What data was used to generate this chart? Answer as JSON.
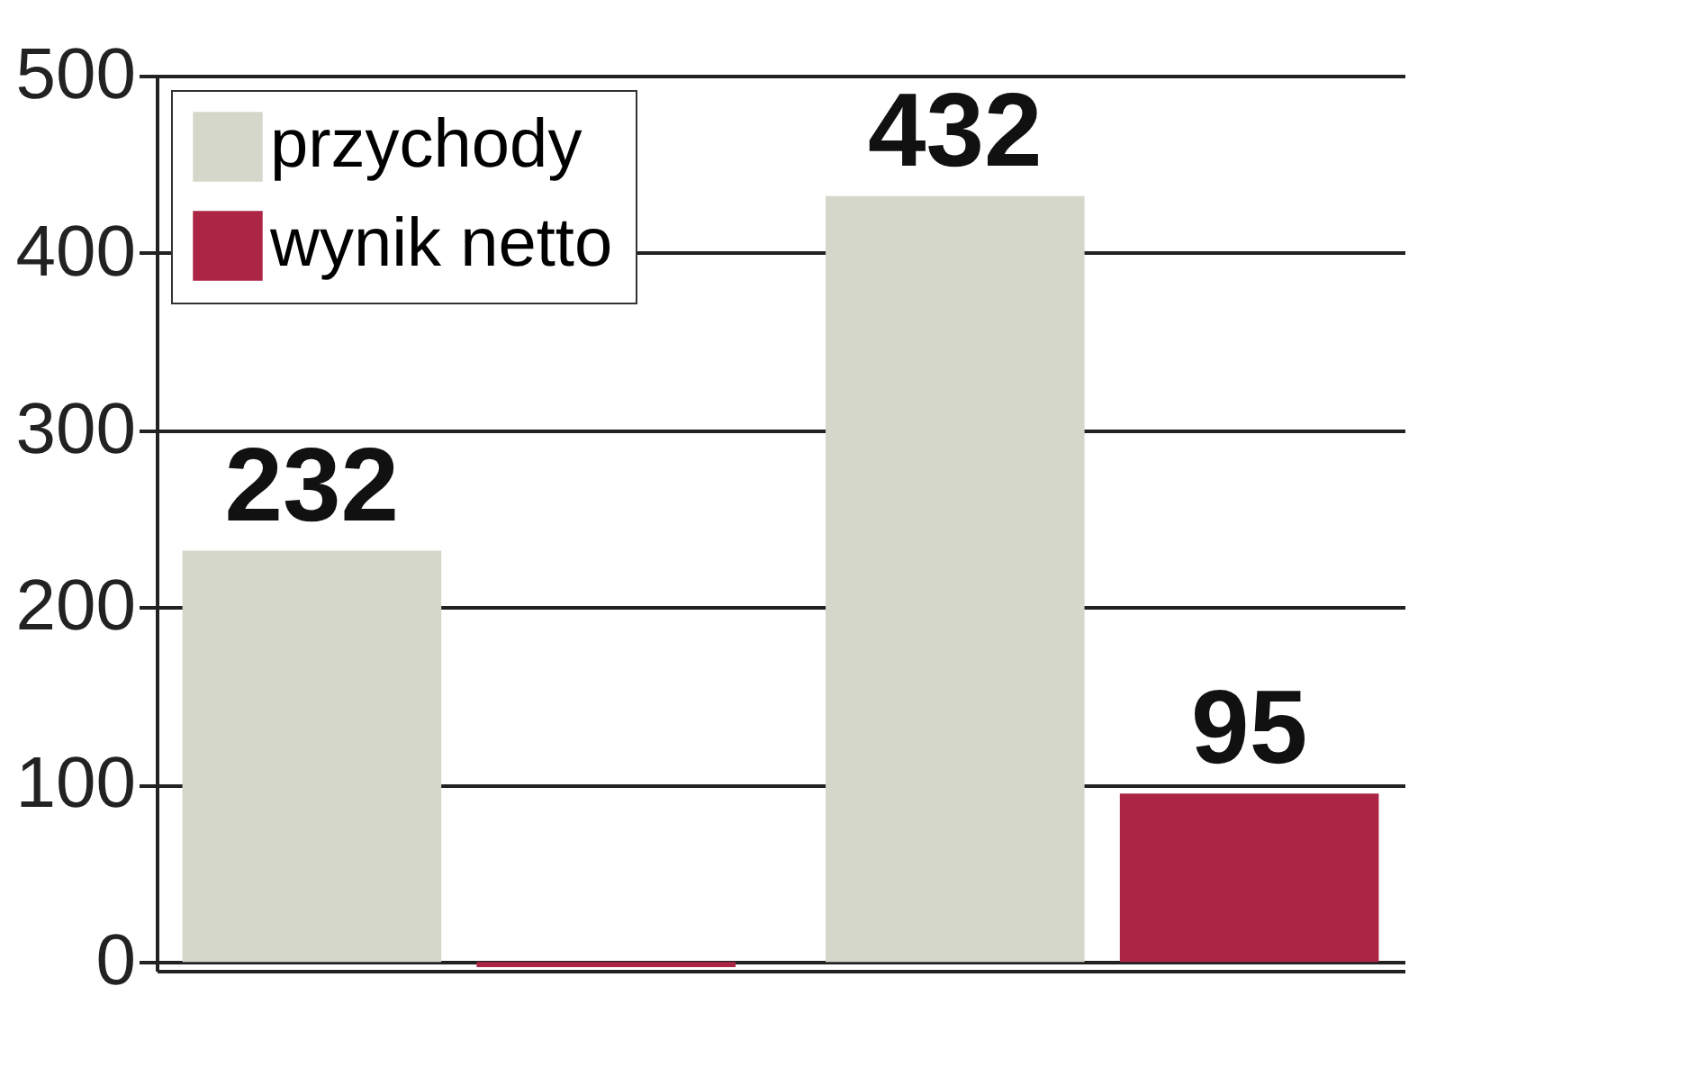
{
  "chart_data": {
    "type": "bar",
    "categories": [
      null,
      null
    ],
    "series": [
      {
        "name": "przychody",
        "color": "#d6d7cb",
        "values": [
          232,
          432
        ],
        "value_labels": [
          "232",
          "432"
        ]
      },
      {
        "name": "wynik netto",
        "color": "#ad2544",
        "values": [
          -3,
          95
        ],
        "value_labels": [
          null,
          "95"
        ]
      }
    ],
    "ylim": [
      -5,
      500
    ],
    "yticks": [
      0,
      100,
      200,
      300,
      400,
      500
    ],
    "grid": "y",
    "legend": "top left"
  }
}
